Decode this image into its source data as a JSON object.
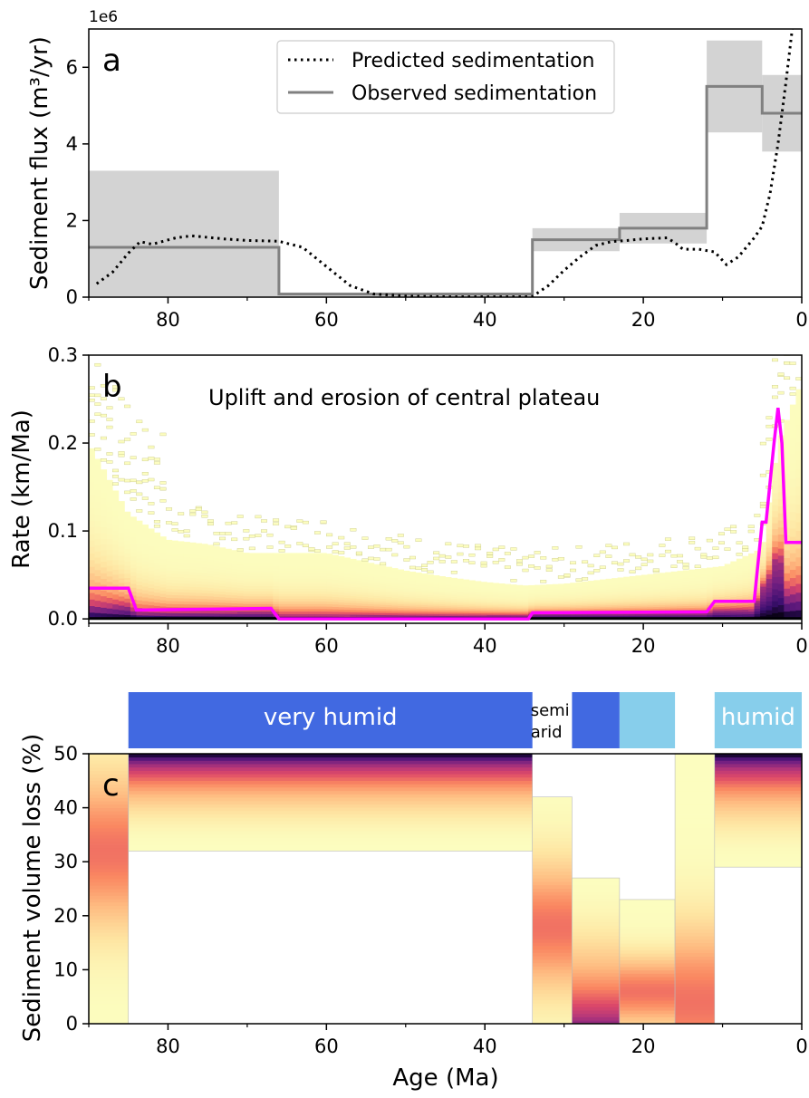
{
  "figure": {
    "x_axis_title": "Age (Ma)",
    "x_ticks": [
      "80",
      "60",
      "40",
      "20",
      "0"
    ],
    "x_tick_values": [
      80,
      60,
      40,
      20,
      0
    ],
    "x_range": [
      90,
      0
    ]
  },
  "colors": {
    "observed": "#808080",
    "band": "#d3d3d3",
    "magenta": "#ff00ff",
    "very_humid": "#4169e1",
    "humid": "#87ceeb",
    "heat_low": "#fcfdbf",
    "heat_high": "#000004"
  },
  "chart_data": [
    {
      "panel": "a",
      "type": "line",
      "ylabel": "Sediment flux (m³/yr)",
      "offset_label": "1e6",
      "y_ticks": [
        "0",
        "2",
        "4",
        "6"
      ],
      "ylim": [
        0,
        7.0
      ],
      "legend": {
        "placement": "top-center",
        "predicted_label": "Predicted sedimentation",
        "observed_label": "Observed sedimentation"
      },
      "series": [
        {
          "name": "Predicted sedimentation",
          "style": "dotted",
          "x": [
            89,
            87,
            85,
            83.5,
            82,
            79,
            77,
            73,
            70,
            66,
            63,
            60,
            57,
            54,
            50,
            45,
            40,
            35,
            34,
            32,
            30,
            28,
            26,
            24,
            22,
            20,
            17,
            16,
            15,
            13,
            11,
            9.5,
            8,
            6,
            5,
            4,
            3,
            2,
            1.2
          ],
          "values": [
            0.35,
            0.65,
            1.15,
            1.45,
            1.38,
            1.55,
            1.6,
            1.52,
            1.48,
            1.46,
            1.3,
            0.8,
            0.3,
            0.08,
            0.03,
            0.01,
            0.01,
            0.01,
            0.02,
            0.3,
            0.7,
            1.05,
            1.35,
            1.45,
            1.48,
            1.52,
            1.55,
            1.42,
            1.25,
            1.25,
            1.18,
            0.85,
            1.05,
            1.55,
            1.85,
            2.7,
            4.0,
            5.6,
            7.0
          ]
        },
        {
          "name": "Observed sedimentation",
          "style": "step",
          "x": [
            90,
            66,
            66,
            34,
            34,
            23,
            23,
            12,
            12,
            5,
            5,
            0
          ],
          "values": [
            1.3,
            1.3,
            0.08,
            0.08,
            1.5,
            1.5,
            1.8,
            1.8,
            5.5,
            5.5,
            4.8,
            4.8
          ]
        }
      ],
      "uncertainty_bands": [
        {
          "x": [
            90,
            66
          ],
          "range": [
            0,
            3.3
          ]
        },
        {
          "x": [
            66,
            34
          ],
          "range": [
            0,
            0.12
          ]
        },
        {
          "x": [
            34,
            23
          ],
          "range": [
            1.2,
            1.8
          ]
        },
        {
          "x": [
            23,
            12
          ],
          "range": [
            1.4,
            2.2
          ]
        },
        {
          "x": [
            12,
            5
          ],
          "range": [
            4.3,
            6.7
          ]
        },
        {
          "x": [
            5,
            0
          ],
          "range": [
            3.8,
            5.8
          ]
        }
      ]
    },
    {
      "panel": "b",
      "type": "heatmap",
      "title": "Uplift and erosion of central plateau",
      "ylabel": "Rate (km/Ma)",
      "y_ticks": [
        "0.0",
        "0.1",
        "0.2",
        "0.3"
      ],
      "ylim": [
        -0.005,
        0.3
      ],
      "upper_envelope": {
        "x": [
          90,
          85,
          80,
          75,
          70,
          65,
          60,
          55,
          50,
          45,
          40,
          35,
          30,
          25,
          20,
          15,
          10,
          5,
          3,
          0
        ],
        "values": [
          0.2,
          0.12,
          0.09,
          0.085,
          0.075,
          0.075,
          0.075,
          0.065,
          0.055,
          0.048,
          0.042,
          0.038,
          0.04,
          0.045,
          0.05,
          0.055,
          0.06,
          0.08,
          0.2,
          0.27
        ]
      },
      "series": [
        {
          "name": "",
          "style": "line",
          "x": [
            90,
            85,
            84,
            67,
            66,
            34.5,
            34,
            12,
            11,
            6,
            5,
            4.5,
            3.5,
            3,
            2.5,
            2,
            1,
            0
          ],
          "values": [
            0.035,
            0.035,
            0.01,
            0.012,
            0.0,
            0.0,
            0.007,
            0.008,
            0.02,
            0.02,
            0.11,
            0.11,
            0.2,
            0.24,
            0.2,
            0.087,
            0.087,
            0.087
          ]
        }
      ]
    },
    {
      "panel": "c",
      "type": "heatmap",
      "ylabel": "Sediment volume loss (%)",
      "y_ticks": [
        "0",
        "10",
        "20",
        "30",
        "40",
        "50"
      ],
      "ylim": [
        0,
        50
      ],
      "columns": [
        {
          "x": [
            90,
            85
          ],
          "range": [
            0,
            50
          ],
          "max_at": 32
        },
        {
          "x": [
            85,
            34
          ],
          "range": [
            32,
            50
          ],
          "max_at": 50
        },
        {
          "x": [
            34,
            29
          ],
          "range": [
            0,
            42
          ],
          "max_at": 18
        },
        {
          "x": [
            29,
            23
          ],
          "range": [
            0,
            27
          ],
          "max_at": 2
        },
        {
          "x": [
            23,
            16
          ],
          "range": [
            0,
            23
          ],
          "max_at": 6
        },
        {
          "x": [
            16,
            11
          ],
          "range": [
            0,
            50
          ],
          "max_at": 4
        },
        {
          "x": [
            11,
            0
          ],
          "range": [
            29,
            50
          ],
          "max_at": 50
        }
      ],
      "climate_bars": [
        {
          "x": [
            85,
            34
          ],
          "kind": "very_humid",
          "label": "very humid"
        },
        {
          "x": [
            34,
            29
          ],
          "kind": "none",
          "label": "semi arid",
          "label_line1": "semi",
          "label_line2": "arid"
        },
        {
          "x": [
            29,
            23
          ],
          "kind": "very_humid",
          "label": ""
        },
        {
          "x": [
            23,
            16
          ],
          "kind": "humid",
          "label": ""
        },
        {
          "x": [
            11,
            0
          ],
          "kind": "humid",
          "label": "humid"
        }
      ]
    }
  ]
}
